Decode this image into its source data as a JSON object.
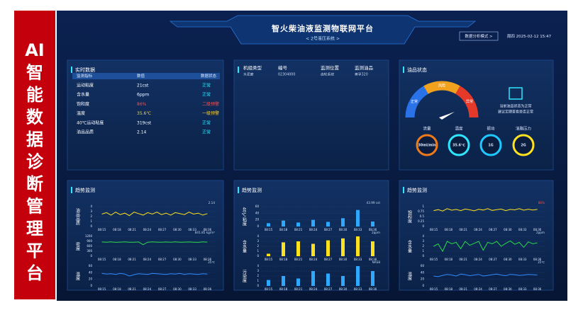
{
  "banner": {
    "lines": [
      "AI",
      "智",
      "能",
      "数",
      "据",
      "诊",
      "断",
      "管",
      "理",
      "平",
      "台"
    ]
  },
  "header": {
    "title": "智火柴油液监测物联网平台",
    "subtitle": "< 2号液压系统 >",
    "mode_button": "数据分析模式 >",
    "datetime": "周四 2025-02-12 15:47"
  },
  "realtime": {
    "title": "实时数据",
    "columns": [
      "监测指标",
      "数值",
      "数据状态"
    ],
    "rows": [
      [
        "运动粘度",
        "21cst",
        "正常"
      ],
      [
        "含水量",
        "6ppm",
        "正常"
      ],
      [
        "饱和度",
        "86%",
        "二级预警"
      ],
      [
        "温度",
        "35.6℃",
        "一级预警"
      ],
      [
        "40℃运动粘度",
        "319cst",
        "正常"
      ],
      [
        "油品品质",
        "2.14",
        "正常"
      ]
    ],
    "row_colors": [
      "#ffffff",
      "#ffffff",
      "#ff4d4d",
      "#ffd21f",
      "#ffffff",
      "#ffffff"
    ],
    "status_colors": [
      "#2fe6ff",
      "#2fe6ff",
      "#ff4d4d",
      "#ffd21f",
      "#2fe6ff",
      "#2fe6ff"
    ]
  },
  "device": {
    "fields": [
      {
        "label": "机组类型",
        "value": "水泥磨"
      },
      {
        "label": "编号",
        "value": "02304000"
      },
      {
        "label": "监测位置",
        "value": "齿轮系统"
      },
      {
        "label": "监测油品",
        "value": "美孚320"
      }
    ]
  },
  "oil_status": {
    "title": "油品状态",
    "gauge_labels": [
      "正常",
      "风险",
      "异常"
    ],
    "note": [
      "当前油品状态为正常",
      "建议定期查看是否正常"
    ],
    "indicators": [
      {
        "label": "流量",
        "value": "30ml/min",
        "color": "#f07a1a"
      },
      {
        "label": "温度",
        "value": "35.6℃",
        "color": "#2fe6ff"
      },
      {
        "label": "振动",
        "value": "1G",
        "color": "#1ec8ff"
      },
      {
        "label": "油路压力",
        "value": "2G",
        "color": "#ffe21f"
      }
    ]
  },
  "trends": {
    "x_labels": [
      "08:15",
      "08:18",
      "08:21",
      "08:24",
      "08:27",
      "08:30",
      "08:33",
      "08:36"
    ],
    "panels": [
      {
        "title": "趋势监测",
        "charts": [
          {
            "type": "line",
            "label": "油品品质",
            "note": "2.14",
            "color": "#ffe21f",
            "ylim": [
              0,
              4
            ],
            "yticks": [
              0,
              1,
              2,
              3,
              4
            ],
            "values": [
              2.5,
              2.8,
              2.3,
              2.9,
              2.4,
              2.7,
              2.2,
              2.9,
              2.6,
              2.3,
              2.8,
              2.5,
              2.9,
              2.4,
              2.7,
              2.3,
              2.8,
              2.6,
              2.4,
              2.9,
              2.5,
              2.7,
              2.3,
              2.6
            ]
          },
          {
            "type": "line",
            "label": "密度",
            "note": "841.85 kg/m³",
            "color": "#2bd94a",
            "ylim": [
              0,
              1200
            ],
            "yticks": [
              0,
              300,
              600,
              900,
              1200
            ],
            "values": [
              860,
              850,
              870,
              840,
              855,
              865,
              845,
              850,
              860,
              700,
              850,
              865,
              855,
              845,
              860,
              850,
              870,
              845,
              855,
              860,
              850,
              840,
              865,
              855
            ]
          },
          {
            "type": "line",
            "label": "温度",
            "note": "35℃",
            "color": "#2f8cff",
            "ylim": [
              0,
              60
            ],
            "yticks": [
              0,
              20,
              40,
              60
            ],
            "values": [
              38,
              36,
              37,
              35,
              38,
              36,
              30,
              34,
              37,
              36,
              35,
              38,
              37,
              36,
              35,
              37,
              36,
              38,
              35,
              37,
              36,
              35,
              37,
              36
            ]
          }
        ]
      },
      {
        "title": "趋势监测",
        "charts": [
          {
            "type": "bar",
            "label": "40℃粘度",
            "note": "43.99 cst",
            "color": "#2fa8ff",
            "ylim": [
              0,
              60
            ],
            "yticks": [
              0,
              20,
              40,
              60
            ],
            "values": [
              10,
              18,
              12,
              20,
              14,
              25,
              50,
              15
            ]
          },
          {
            "type": "bar",
            "label": "含水量",
            "note": "2ppm",
            "color": "#ffe21f",
            "ylim": [
              0,
              4
            ],
            "yticks": [
              0,
              1,
              2,
              3,
              4
            ],
            "values": [
              0.5,
              2.8,
              3,
              2.5,
              3.2,
              3.6,
              4,
              3
            ]
          },
          {
            "type": "bar",
            "label": "污染度",
            "note": "NAS8",
            "color": "#2fa8ff",
            "ylim": [
              0,
              4
            ],
            "yticks": [
              0,
              1,
              2,
              3,
              4
            ],
            "values": [
              1.2,
              2,
              1.5,
              3,
              2.5,
              2,
              4,
              3
            ]
          }
        ]
      },
      {
        "title": "趋势监测",
        "charts": [
          {
            "type": "line",
            "label": "饱和度",
            "note": "86%",
            "color": "#ffe21f",
            "ylim": [
              0,
              1
            ],
            "yticks": [
              0,
              0.25,
              0.5,
              0.75,
              1
            ],
            "values": [
              0.8,
              0.85,
              0.78,
              0.9,
              0.82,
              0.86,
              0.8,
              0.88,
              0.84,
              0.79,
              0.87,
              0.83,
              0.9,
              0.81,
              0.85,
              0.88,
              0.8,
              0.86,
              0.84,
              0.9,
              0.82,
              0.87,
              0.83,
              0.86
            ]
          },
          {
            "type": "line",
            "label": "含水量",
            "note": "2ppm",
            "color": "#2bd94a",
            "ylim": [
              0,
              4
            ],
            "yticks": [
              0,
              1,
              2,
              3,
              4
            ],
            "values": [
              2,
              2.5,
              1,
              3,
              2.5,
              2.8,
              1.5,
              3,
              2.2,
              2.6,
              3,
              1.2,
              2.8,
              2.5,
              3,
              2,
              2.6,
              3.1,
              2.4,
              2.8,
              1.8,
              2.9,
              2.5,
              2.7
            ]
          },
          {
            "type": "line",
            "label": "温度",
            "note": "35℃",
            "color": "#2f8cff",
            "ylim": [
              0,
              60
            ],
            "yticks": [
              0,
              20,
              40,
              60
            ],
            "values": [
              30,
              28,
              32,
              35,
              33,
              30,
              36,
              34,
              31,
              33,
              35,
              30,
              32,
              34,
              36,
              33,
              31,
              35,
              34,
              32,
              33,
              35,
              34,
              33
            ]
          }
        ]
      }
    ]
  }
}
